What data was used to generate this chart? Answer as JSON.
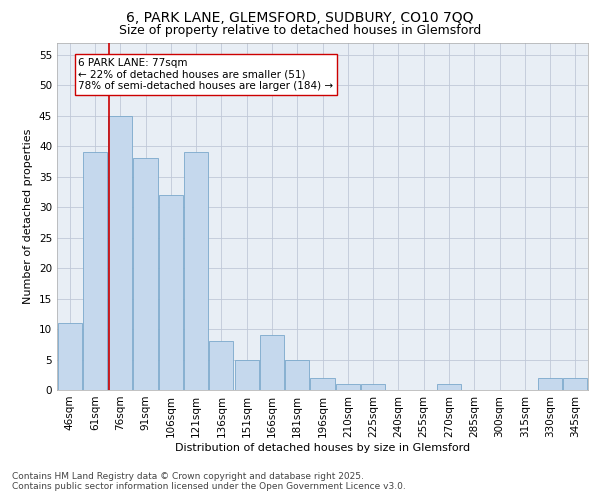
{
  "title_line1": "6, PARK LANE, GLEMSFORD, SUDBURY, CO10 7QQ",
  "title_line2": "Size of property relative to detached houses in Glemsford",
  "xlabel": "Distribution of detached houses by size in Glemsford",
  "ylabel": "Number of detached properties",
  "categories": [
    "46sqm",
    "61sqm",
    "76sqm",
    "91sqm",
    "106sqm",
    "121sqm",
    "136sqm",
    "151sqm",
    "166sqm",
    "181sqm",
    "196sqm",
    "210sqm",
    "225sqm",
    "240sqm",
    "255sqm",
    "270sqm",
    "285sqm",
    "300sqm",
    "315sqm",
    "330sqm",
    "345sqm"
  ],
  "values": [
    11,
    39,
    45,
    38,
    32,
    39,
    8,
    5,
    9,
    5,
    2,
    1,
    1,
    0,
    0,
    1,
    0,
    0,
    0,
    2,
    2
  ],
  "bar_color": "#c5d8ed",
  "bar_edge_color": "#7aa8cc",
  "vline_color": "#cc0000",
  "annotation_text": "6 PARK LANE: 77sqm\n← 22% of detached houses are smaller (51)\n78% of semi-detached houses are larger (184) →",
  "annotation_box_color": "#ffffff",
  "annotation_box_edge_color": "#cc0000",
  "ylim": [
    0,
    57
  ],
  "yticks": [
    0,
    5,
    10,
    15,
    20,
    25,
    30,
    35,
    40,
    45,
    50,
    55
  ],
  "grid_color": "#c0c8d8",
  "bg_color": "#e8eef5",
  "footer_line1": "Contains HM Land Registry data © Crown copyright and database right 2025.",
  "footer_line2": "Contains public sector information licensed under the Open Government Licence v3.0.",
  "title_fontsize": 10,
  "subtitle_fontsize": 9,
  "axis_label_fontsize": 8,
  "tick_fontsize": 7.5,
  "annotation_fontsize": 7.5,
  "footer_fontsize": 6.5
}
